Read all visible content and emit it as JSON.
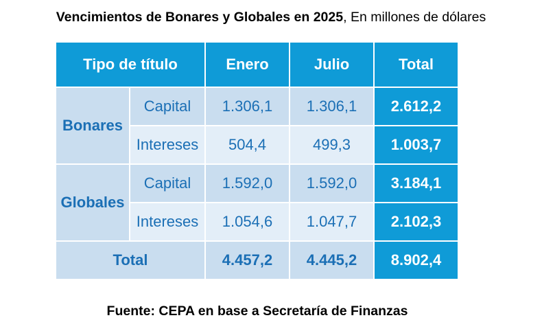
{
  "chart_data": {
    "type": "table",
    "title": "Vencimientos de Bonares y Globales en 2025",
    "subtitle": "En millones de dólares",
    "separator": ",",
    "columns": [
      "Tipo de título",
      "Enero",
      "Julio",
      "Total"
    ],
    "groups": [
      {
        "name": "Bonares",
        "rows": [
          {
            "label": "Capital",
            "enero": "1.306,1",
            "julio": "1.306,1",
            "total": "2.612,2"
          },
          {
            "label": "Intereses",
            "enero": "504,4",
            "julio": "499,3",
            "total": "1.003,7"
          }
        ]
      },
      {
        "name": "Globales",
        "rows": [
          {
            "label": "Capital",
            "enero": "1.592,0",
            "julio": "1.592,0",
            "total": "3.184,1"
          },
          {
            "label": "Intereses",
            "enero": "1.054,6",
            "julio": "1.047,7",
            "total": "2.102,3"
          }
        ]
      }
    ],
    "total_row": {
      "label": "Total",
      "enero": "4.457,2",
      "julio": "4.445,2",
      "total": "8.902,4"
    },
    "source": "Fuente: CEPA en base a Secretaría de Finanzas"
  },
  "colors": {
    "header": "#0f9bd7",
    "row_dark": "#c9ddef",
    "row_light": "#e3eef8",
    "text_blue": "#1b6fb5"
  }
}
